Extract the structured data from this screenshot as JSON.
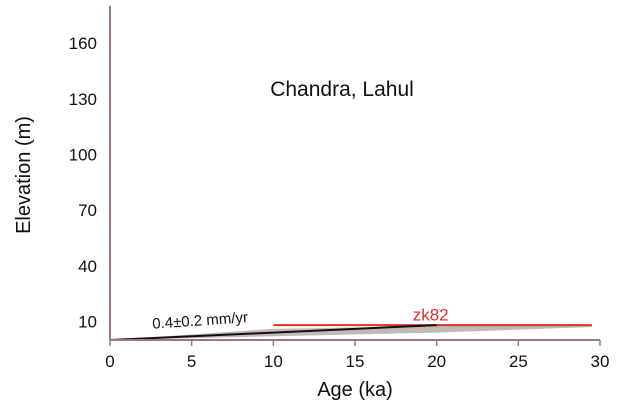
{
  "chart_data": {
    "type": "line",
    "title": "Chandra, Lahul",
    "xlabel": "Age (ka)",
    "ylabel": "Elevation (m)",
    "xlim": [
      0,
      30
    ],
    "ylim": [
      0,
      180
    ],
    "xticks": [
      0,
      5,
      10,
      15,
      20,
      25,
      30
    ],
    "yticks": [
      10,
      40,
      70,
      100,
      130,
      160
    ],
    "grid": false,
    "colors": {
      "axis": "#9a7a7a",
      "sample": "#e0302a",
      "band": "#bfbab4",
      "fit": "#111111"
    },
    "sample": {
      "label": "zk82",
      "x_start": 10,
      "x_end": 29.5,
      "y": 8,
      "label_x": 20,
      "label_y": 9
    },
    "uncertainty_band": [
      [
        0,
        0
      ],
      [
        10,
        6
      ],
      [
        20,
        7.5
      ],
      [
        29.5,
        8
      ],
      [
        29.5,
        7
      ],
      [
        20,
        4
      ],
      [
        10,
        2
      ],
      [
        0,
        0
      ]
    ],
    "fit_line": [
      [
        0,
        0
      ],
      [
        20,
        8
      ]
    ],
    "rate_annotation": {
      "text": "0.4±0.2 mm/yr",
      "x": 2,
      "y": 5
    }
  }
}
